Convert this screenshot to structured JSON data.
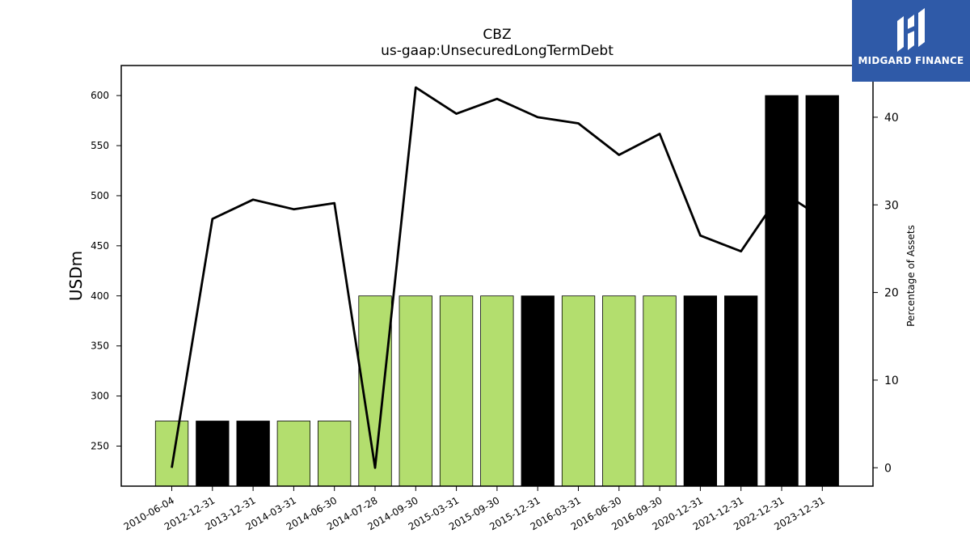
{
  "logo": {
    "text": "MIDGARD FINANCE",
    "icon": "midgard-logo-icon",
    "color": "#2f5aa8"
  },
  "chart_data": {
    "type": "bar",
    "title": "CBZ",
    "subtitle": "us-gaap:UnsecuredLongTermDebt",
    "ylabel": "USDm",
    "y2label": "Percentage of Assets",
    "categories": [
      "2010-06-04",
      "2012-12-31",
      "2013-12-31",
      "2014-03-31",
      "2014-06-30",
      "2014-07-28",
      "2014-09-30",
      "2015-03-31",
      "2015-09-30",
      "2015-12-31",
      "2016-03-31",
      "2016-06-30",
      "2016-09-30",
      "2020-12-31",
      "2021-12-31",
      "2022-12-31",
      "2023-12-31"
    ],
    "values": [
      275,
      275,
      275,
      275,
      275,
      400,
      400,
      400,
      400,
      400,
      400,
      400,
      400,
      400,
      400,
      600,
      600
    ],
    "bar_colors": [
      "#b3de6e",
      "#000000",
      "#000000",
      "#b3de6e",
      "#b3de6e",
      "#b3de6e",
      "#b3de6e",
      "#b3de6e",
      "#b3de6e",
      "#000000",
      "#b3de6e",
      "#b3de6e",
      "#b3de6e",
      "#000000",
      "#000000",
      "#000000",
      "#000000"
    ],
    "line_series": {
      "values": [
        0,
        28.4,
        30.6,
        29.5,
        30.2,
        0,
        43.4,
        40.4,
        42.1,
        40.0,
        39.3,
        35.7,
        38.1,
        26.5,
        24.7,
        31.5,
        28.5
      ],
      "color": "#000000"
    },
    "ylim": [
      210,
      630
    ],
    "y2lim": [
      -2.1,
      45.9
    ],
    "yticks": [
      250,
      300,
      350,
      400,
      450,
      500,
      550,
      600
    ],
    "y2ticks": [
      0,
      10,
      20,
      30,
      40
    ],
    "grid": false
  }
}
